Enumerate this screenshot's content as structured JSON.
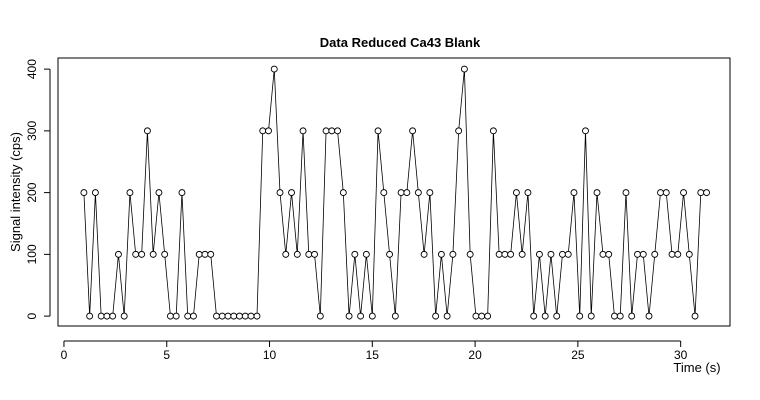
{
  "chart_data": {
    "type": "line",
    "title": "Data Reduced Ca43 Blank",
    "x_label": "Time (s)",
    "y_label": "Signal intensity (cps)",
    "x": [
      0.97,
      1.25,
      1.53,
      1.81,
      2.09,
      2.37,
      2.65,
      2.93,
      3.21,
      3.49,
      3.78,
      4.06,
      4.34,
      4.62,
      4.9,
      5.18,
      5.46,
      5.74,
      6.02,
      6.3,
      6.58,
      6.86,
      7.14,
      7.42,
      7.7,
      7.98,
      8.26,
      8.54,
      8.82,
      9.1,
      9.39,
      9.67,
      9.95,
      10.23,
      10.51,
      10.79,
      11.07,
      11.35,
      11.63,
      11.91,
      12.19,
      12.47,
      12.75,
      13.03,
      13.31,
      13.59,
      13.87,
      14.15,
      14.43,
      14.71,
      15.0,
      15.28,
      15.56,
      15.84,
      16.12,
      16.4,
      16.68,
      16.96,
      17.24,
      17.52,
      17.8,
      18.08,
      18.36,
      18.64,
      18.92,
      19.2,
      19.48,
      19.76,
      20.04,
      20.32,
      20.61,
      20.89,
      21.17,
      21.45,
      21.73,
      22.01,
      22.29,
      22.57,
      22.85,
      23.13,
      23.41,
      23.69,
      23.97,
      24.25,
      24.53,
      24.81,
      25.09,
      25.37,
      25.65,
      25.93,
      26.22,
      26.5,
      26.78,
      27.06,
      27.34,
      27.62,
      27.9,
      28.18,
      28.46,
      28.74,
      29.02,
      29.3,
      29.58,
      29.86,
      30.14,
      30.42,
      30.7,
      30.98,
      31.26
    ],
    "values": [
      200,
      0,
      200,
      0,
      0,
      0,
      100,
      0,
      200,
      100,
      100,
      300,
      100,
      200,
      100,
      0,
      0,
      200,
      0,
      0,
      100,
      100,
      100,
      0,
      0,
      0,
      0,
      0,
      0,
      0,
      0,
      300,
      300,
      400,
      200,
      100,
      200,
      100,
      300,
      100,
      100,
      0,
      300,
      300,
      300,
      200,
      0,
      100,
      0,
      100,
      0,
      300,
      200,
      100,
      0,
      200,
      200,
      300,
      200,
      100,
      200,
      0,
      100,
      0,
      100,
      300,
      400,
      100,
      0,
      0,
      0,
      300,
      100,
      100,
      100,
      200,
      100,
      200,
      0,
      100,
      0,
      100,
      0,
      100,
      100,
      200,
      0,
      300,
      0,
      200,
      100,
      100,
      0,
      0,
      200,
      0,
      100,
      100,
      0,
      100,
      200,
      200,
      100,
      100,
      200,
      100,
      0,
      200,
      200
    ],
    "color": "#000000",
    "xlim": [
      -0.29,
      32.4
    ],
    "ylim": [
      -16,
      418
    ],
    "xticks": [
      0,
      5,
      10,
      15,
      20,
      25,
      30
    ],
    "yticks": [
      0,
      100,
      200,
      300,
      400
    ]
  }
}
